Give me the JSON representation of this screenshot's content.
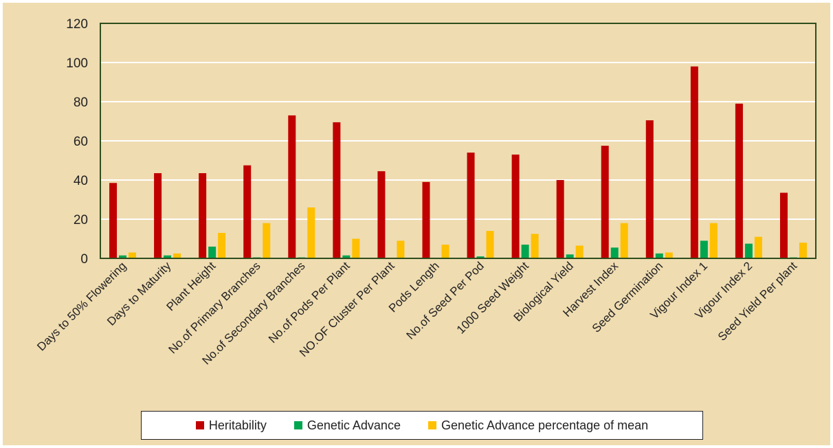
{
  "chart_data": {
    "type": "bar",
    "title": "",
    "xlabel": "",
    "ylabel": "",
    "ylim": [
      0,
      120
    ],
    "yticks": [
      0,
      20,
      40,
      60,
      80,
      100,
      120
    ],
    "grid": true,
    "legend_position": "bottom",
    "categories": [
      "Days to 50% Flowering",
      "Days to Maturity",
      "Plant Height",
      "No.of Primary Branches",
      "No.of Secondary Branches",
      "No.of Pods Per Plant",
      "NO.OF Cluster Per Plant",
      "Pods Length",
      "No.of Seed Per Pod",
      "1000 Seed Weight",
      "Biological Yield",
      "Harvest Index",
      "Seed Germination",
      "Vigour Index  1",
      "Vigour Index 2",
      "Seed Yield Per plant"
    ],
    "series": [
      {
        "name": "Heritability",
        "color": "#c00000",
        "values": [
          38.5,
          43.5,
          43.5,
          47.5,
          73,
          69.5,
          44.5,
          39,
          54,
          53,
          40,
          57.5,
          70.5,
          98,
          79,
          33.5
        ]
      },
      {
        "name": "Genetic Advance",
        "color": "#00a550",
        "values": [
          1.5,
          1.5,
          6,
          0.5,
          0.5,
          1.5,
          0,
          0,
          1,
          7,
          2,
          5.5,
          2.5,
          9,
          7.5,
          0.5
        ]
      },
      {
        "name": "Genetic Advance percentage of mean",
        "color": "#ffc000",
        "values": [
          3,
          2.5,
          13,
          18,
          26,
          10,
          9,
          7,
          14,
          12.5,
          6.5,
          18,
          3,
          18,
          11,
          8
        ]
      }
    ]
  }
}
